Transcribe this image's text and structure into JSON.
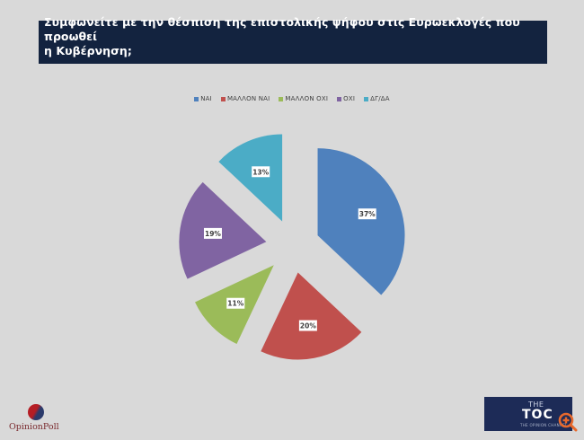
{
  "header": {
    "title_line1": "Συμφωνείτε με την θέσπιση της επιστολικής ψήφου στις Ευρωεκλογές που προωθεί",
    "title_line2": "η Κυβέρνηση;"
  },
  "chart_data": {
    "type": "pie",
    "title": "Συμφωνείτε με την θέσπιση της επιστολικής ψήφου στις Ευρωεκλογές που προωθεί η Κυβέρνηση;",
    "categories": [
      "ΝΑΙ",
      "ΜΑΛΛΟΝ ΝΑΙ",
      "ΜΑΛΛΟΝ ΟΧΙ",
      "ΟΧΙ",
      "ΔΓ/ΔΑ"
    ],
    "values": [
      37,
      20,
      11,
      19,
      13
    ],
    "labels": [
      "37%",
      "20%",
      "11%",
      "19%",
      "13%"
    ],
    "colors": [
      "#4f81bd",
      "#c0504d",
      "#9bbb59",
      "#8064a2",
      "#4bacc6"
    ],
    "exploded": true,
    "start_angle": 0,
    "direction": "clockwise",
    "legend_position": "top"
  },
  "legend": [
    {
      "label": "ΝΑΙ",
      "color": "#4f81bd"
    },
    {
      "label": "ΜΑΛΛΟΝ ΝΑΙ",
      "color": "#c0504d"
    },
    {
      "label": "ΜΑΛΛΟΝ ΟΧΙ",
      "color": "#9bbb59"
    },
    {
      "label": "ΟΧΙ",
      "color": "#8064a2"
    },
    {
      "label": "ΔΓ/ΔΑ",
      "color": "#4bacc6"
    }
  ],
  "footer": {
    "left_logo_text": "OpinionPoll",
    "right_logo_the": "THE",
    "right_logo_main": "TOC",
    "right_logo_sub": "THE OPINION CHANNEL",
    "zoom_icon": "zoom-in-icon",
    "zoom_color": "#e8692c"
  }
}
